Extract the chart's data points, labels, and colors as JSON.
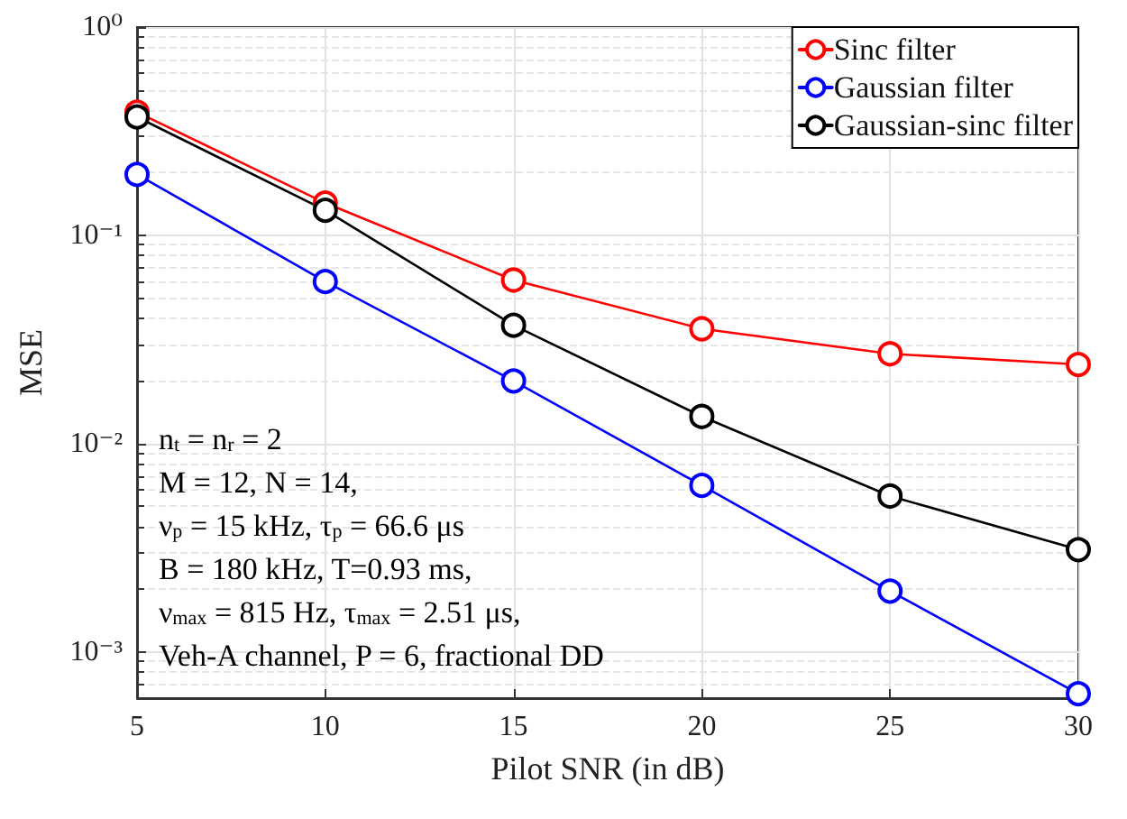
{
  "chart_data": {
    "type": "line",
    "xlabel": "Pilot SNR (in dB)",
    "ylabel": "MSE",
    "x": [
      5,
      10,
      15,
      20,
      25,
      30
    ],
    "series": [
      {
        "name": "Sinc filter",
        "color": "#ff0000",
        "values": [
          0.39,
          0.143,
          0.061,
          0.0356,
          0.027,
          0.024
        ]
      },
      {
        "name": "Gaussian filter",
        "color": "#0000ff",
        "values": [
          0.196,
          0.06,
          0.02,
          0.0063,
          0.00196,
          0.00063
        ]
      },
      {
        "name": "Gaussian-sinc filter",
        "color": "#000000",
        "values": [
          0.37,
          0.132,
          0.037,
          0.0135,
          0.0056,
          0.0031
        ]
      }
    ],
    "log": true,
    "xlim": [
      5,
      30
    ],
    "xticks": [
      5,
      10,
      15,
      20,
      25,
      30
    ],
    "ylim": [
      0.0006,
      1
    ],
    "yticks": [
      {
        "value": 0.001,
        "label": "10⁻³"
      },
      {
        "value": 0.01,
        "label": "10⁻²"
      },
      {
        "value": 0.1,
        "label": "10⁻¹"
      },
      {
        "value": 1,
        "label": "10⁰"
      }
    ],
    "grid": true,
    "legend": "top right",
    "marker": "circle",
    "line_style": "solid",
    "annotations": [
      "n$_{t}$ = n$_{r}$ = 2",
      "M = 12, N = 14,",
      "ν$_{p}$ = 15 kHz, τ$_{p}$ = 66.6 μs",
      "B = 180 kHz, T=0.93 ms,",
      "ν$_{max}$ = 815 Hz, τ$_{max}$ = 2.51 μs,",
      "Veh-A channel, P = 6, fractional DD"
    ]
  }
}
